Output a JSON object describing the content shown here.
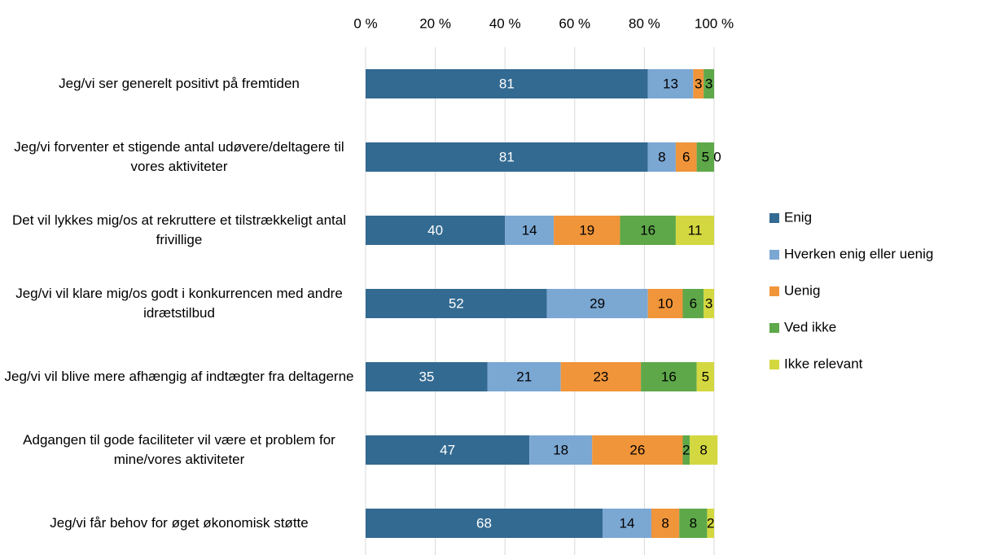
{
  "chart_data": {
    "type": "stacked_bar_horizontal",
    "categories": [
      "Jeg/vi ser generelt positivt på fremtiden",
      "Jeg/vi forventer et stigende antal udøvere/deltagere til vores aktiviteter",
      "Det vil lykkes mig/os at rekruttere et tilstrækkeligt antal frivillige",
      "Jeg/vi vil klare mig/os godt i konkurrencen med andre idrætstilbud",
      "Jeg/vi vil blive mere afhængig af indtægter fra deltagerne",
      "Adgangen til gode faciliteter vil være et problem for mine/vores aktiviteter",
      "Jeg/vi får behov for øget økonomisk støtte"
    ],
    "series": [
      {
        "name": "Enig",
        "color": "#336a91",
        "label_color": "#ffffff",
        "values": [
          81,
          81,
          40,
          52,
          35,
          47,
          68
        ]
      },
      {
        "name": "Hverken enig eller uenig",
        "color": "#7ba7d3",
        "label_color": "#000000",
        "values": [
          13,
          8,
          14,
          29,
          21,
          18,
          14
        ]
      },
      {
        "name": "Uenig",
        "color": "#f0953a",
        "label_color": "#000000",
        "values": [
          3,
          6,
          19,
          10,
          23,
          26,
          8
        ]
      },
      {
        "name": "Ved ikke",
        "color": "#5ea84a",
        "label_color": "#000000",
        "values": [
          3,
          5,
          16,
          6,
          16,
          2,
          8
        ]
      },
      {
        "name": "Ikke relevant",
        "color": "#d4d840",
        "label_color": "#000000",
        "values": [
          null,
          0,
          11,
          3,
          5,
          8,
          2
        ]
      }
    ],
    "xlim": [
      0,
      100
    ],
    "xticks": [
      {
        "value": 0,
        "label": "0 %"
      },
      {
        "value": 20,
        "label": "20 %"
      },
      {
        "value": 40,
        "label": "40 %"
      },
      {
        "value": 60,
        "label": "60 %"
      },
      {
        "value": 80,
        "label": "80 %"
      },
      {
        "value": 100,
        "label": "100 %"
      }
    ],
    "grid": true,
    "legend": "right"
  }
}
